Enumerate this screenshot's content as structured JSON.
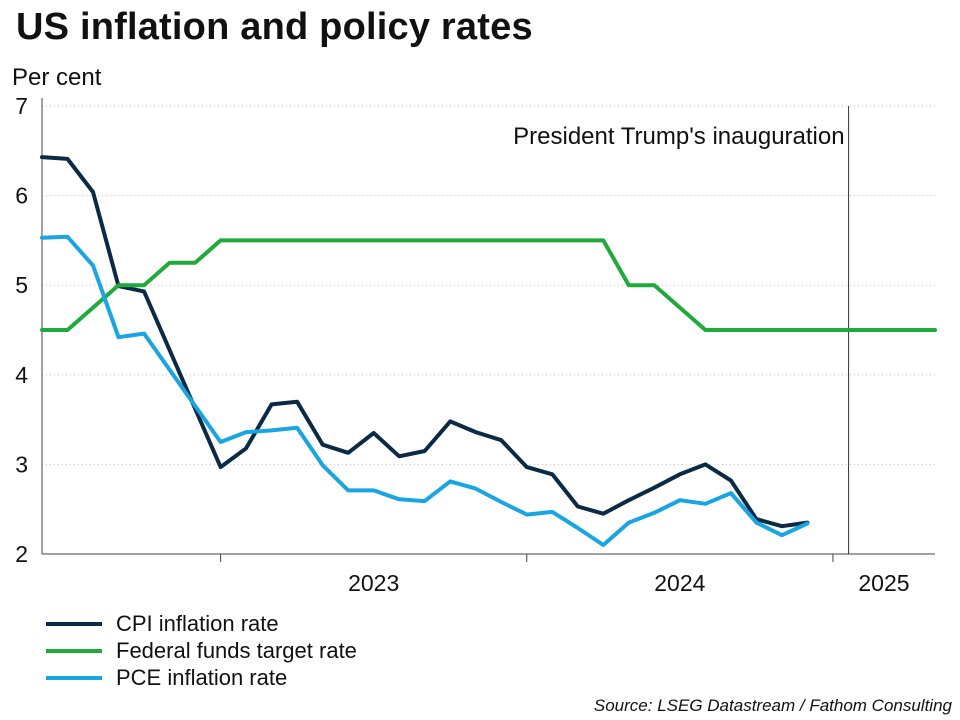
{
  "title": "US inflation and policy rates",
  "source": "Source: LSEG Datastream / Fathom Consulting",
  "chart_data": {
    "type": "line",
    "title": "US inflation and policy rates",
    "ylabel": "Per cent",
    "ylim": [
      2,
      7
    ],
    "yticks": [
      2,
      3,
      4,
      5,
      6,
      7
    ],
    "xlim": [
      "2022-06",
      "2025-05"
    ],
    "x_tick_labels": [
      {
        "label": "2023",
        "at": "2023-07"
      },
      {
        "label": "2024",
        "at": "2024-07"
      },
      {
        "label": "2025",
        "at": "2025-03"
      }
    ],
    "x_year_boundaries": [
      "2023-01",
      "2024-01",
      "2025-01"
    ],
    "grid": "horizontal dotted",
    "legend_position": "bottom-left",
    "annotations": [
      {
        "text": "President Trump's inauguration",
        "x": "2025-01-20"
      }
    ],
    "x": [
      "2022-06",
      "2022-07",
      "2022-08",
      "2022-09",
      "2022-10",
      "2022-11",
      "2022-12",
      "2023-01",
      "2023-02",
      "2023-03",
      "2023-04",
      "2023-05",
      "2023-06",
      "2023-07",
      "2023-08",
      "2023-09",
      "2023-10",
      "2023-11",
      "2023-12",
      "2024-01",
      "2024-02",
      "2024-03",
      "2024-04",
      "2024-05",
      "2024-06",
      "2024-07",
      "2024-08",
      "2024-09",
      "2024-10",
      "2024-11",
      "2024-12",
      "2025-01",
      "2025-02",
      "2025-03",
      "2025-04",
      "2025-05"
    ],
    "series": [
      {
        "name": "CPI inflation rate",
        "color": "#0b2a45",
        "values": [
          6.43,
          6.41,
          6.04,
          4.99,
          4.93,
          null,
          null,
          2.97,
          3.18,
          3.67,
          3.7,
          3.22,
          3.13,
          3.35,
          3.09,
          3.15,
          3.48,
          3.36,
          3.27,
          2.97,
          2.89,
          2.53,
          2.45,
          2.6,
          2.74,
          2.89,
          3.0,
          2.82,
          2.39,
          2.31,
          2.35,
          null,
          null,
          null,
          null,
          null
        ]
      },
      {
        "name": "Federal funds target rate",
        "color": "#1faa3b",
        "values": [
          4.5,
          4.5,
          4.75,
          5.0,
          5.0,
          5.25,
          5.25,
          5.5,
          5.5,
          5.5,
          5.5,
          5.5,
          5.5,
          5.5,
          5.5,
          5.5,
          5.5,
          5.5,
          5.5,
          5.5,
          5.5,
          5.5,
          5.5,
          5.0,
          5.0,
          4.75,
          4.5,
          4.5,
          4.5,
          4.5,
          4.5,
          4.5,
          4.5,
          4.5,
          4.5,
          4.5
        ]
      },
      {
        "name": "PCE inflation rate",
        "color": "#19a4e2",
        "values": [
          5.53,
          5.54,
          5.22,
          4.42,
          4.46,
          null,
          null,
          3.25,
          3.36,
          3.38,
          3.41,
          2.99,
          2.71,
          2.71,
          2.61,
          2.59,
          2.81,
          2.73,
          2.58,
          2.44,
          2.47,
          2.29,
          2.1,
          2.35,
          2.46,
          2.6,
          2.56,
          2.68,
          2.35,
          2.21,
          2.34,
          null,
          null,
          null,
          null,
          null
        ]
      }
    ]
  }
}
